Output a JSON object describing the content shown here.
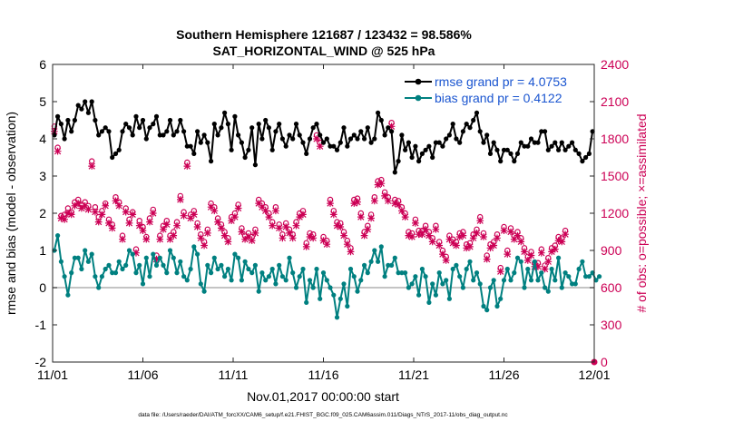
{
  "chart_data": {
    "type": "line",
    "title_line1": "Southern Hemisphere 121687 / 123432 = 98.586%",
    "title_line2": "SAT_HORIZONTAL_WIND @ 525 hPa",
    "xlabel": "Nov.01,2017 00:00:00 start",
    "ylabel_left": "rmse and bias (model - observation)",
    "ylabel_right": "# of obs: o=possible; ×=assimilated",
    "footer": "data file: /Users/raeder/DAI/ATM_forcXX/CAM6_setup/f.e21.FHIST_BGC.f09_025.CAM6assim.011/Diags_NTrS_2017-11/obs_diag_output.nc",
    "x_ticks": [
      "11/01",
      "11/06",
      "11/11",
      "11/16",
      "11/21",
      "11/26",
      "12/01"
    ],
    "y_left_ticks": [
      "-2",
      "-1",
      "0",
      "1",
      "2",
      "3",
      "4",
      "5",
      "6"
    ],
    "y_right_ticks": [
      "0",
      "300",
      "600",
      "900",
      "1200",
      "1500",
      "1800",
      "2100",
      "2400"
    ],
    "ylim_left": [
      -2,
      6
    ],
    "ylim_right": [
      0,
      2400
    ],
    "xlim_days": [
      0,
      30
    ],
    "legend": {
      "rmse_label": "rmse grand pr = 4.0753",
      "bias_label": "bias grand pr = 0.4122",
      "position": "top-right"
    },
    "colors": {
      "rmse": "#000000",
      "bias": "#008080",
      "obs": "#cc0055",
      "zero_line": "#b0b0b0",
      "legend_text": "#1a55d0"
    },
    "rmse": [
      4.1,
      4.6,
      4.4,
      4.0,
      4.5,
      4.2,
      4.5,
      4.9,
      4.8,
      5.0,
      4.7,
      5.0,
      4.5,
      4.1,
      4.2,
      4.3,
      4.2,
      3.5,
      3.6,
      3.7,
      4.2,
      4.4,
      4.3,
      4.1,
      4.6,
      4.3,
      4.5,
      4.0,
      4.3,
      4.4,
      4.6,
      4.1,
      4.1,
      4.2,
      4.5,
      4.1,
      4.2,
      4.5,
      4.2,
      3.8,
      3.8,
      3.6,
      4.2,
      3.9,
      4.1,
      3.9,
      3.4,
      4.4,
      4.1,
      4.3,
      4.7,
      4.4,
      3.7,
      4.6,
      4.1,
      3.9,
      3.5,
      3.7,
      4.3,
      3.3,
      4.4,
      4.0,
      4.5,
      4.3,
      3.7,
      4.2,
      4.4,
      4.0,
      3.8,
      4.1,
      4.0,
      4.4,
      4.1,
      3.9,
      3.6,
      4.0,
      4.3,
      4.4,
      4.1,
      3.9,
      4.0,
      3.8,
      3.8,
      3.7,
      3.9,
      4.3,
      3.8,
      4.0,
      4.1,
      4.0,
      4.2,
      4.0,
      4.3,
      3.9,
      4.0,
      4.7,
      4.5,
      4.1,
      4.3,
      4.2,
      3.1,
      3.4,
      4.1,
      3.7,
      3.9,
      3.5,
      3.8,
      3.4,
      3.6,
      3.7,
      3.8,
      3.5,
      3.9,
      3.9,
      3.8,
      4.0,
      4.1,
      4.4,
      4.0,
      3.9,
      4.2,
      4.4,
      4.3,
      4.5,
      4.7,
      4.2,
      3.9,
      4.1,
      3.6,
      3.9,
      3.7,
      3.4,
      3.7,
      3.7,
      3.6,
      3.4,
      3.6,
      3.9,
      3.8,
      3.8,
      4.0,
      3.9,
      3.9,
      4.2,
      4.2,
      3.7,
      3.8,
      3.9,
      3.7,
      3.9,
      3.7,
      3.8,
      3.9,
      3.7,
      3.6,
      3.4,
      3.5,
      3.6,
      4.2
    ],
    "bias": [
      1.0,
      1.4,
      0.7,
      0.3,
      -0.2,
      0.4,
      0.8,
      0.8,
      0.5,
      1.0,
      0.7,
      0.9,
      0.3,
      0.0,
      0.3,
      0.5,
      0.6,
      0.4,
      0.4,
      0.7,
      0.5,
      0.6,
      1.0,
      0.9,
      0.4,
      0.6,
      0.1,
      0.8,
      0.3,
      0.9,
      0.6,
      0.8,
      0.6,
      0.4,
      1.0,
      0.8,
      0.4,
      0.7,
      0.3,
      0.2,
      0.5,
      1.1,
      0.9,
      0.1,
      -0.1,
      0.6,
      0.4,
      0.8,
      0.5,
      0.6,
      0.3,
      0.5,
      0.2,
      0.9,
      0.8,
      0.2,
      0.7,
      0.5,
      0.4,
      0.6,
      -0.1,
      0.4,
      0.2,
      0.3,
      0.5,
      0.1,
      0.6,
      0.3,
      0.2,
      0.8,
      0.4,
      0.0,
      0.3,
      0.5,
      -0.4,
      0.2,
      0.0,
      0.5,
      -0.3,
      0.4,
      0.2,
      0.0,
      -0.2,
      -0.8,
      -0.3,
      0.1,
      -0.5,
      0.5,
      0.3,
      -0.1,
      0.2,
      0.6,
      0.4,
      0.7,
      1.0,
      0.7,
      1.1,
      0.3,
      0.6,
      0.6,
      0.8,
      0.4,
      0.4,
      0.4,
      0.0,
      0.1,
      0.3,
      -0.2,
      0.5,
      0.3,
      -0.4,
      0.1,
      -0.2,
      0.4,
      0.1,
      0.2,
      -0.3,
      0.5,
      0.6,
      0.3,
      0.0,
      0.5,
      0.7,
      0.2,
      0.4,
      0.1,
      -0.5,
      -0.6,
      0.0,
      0.2,
      -0.5,
      -0.3,
      0.2,
      0.5,
      0.2,
      0.4,
      0.8,
      0.7,
      0.0,
      0.5,
      0.2,
      0.7,
      0.2,
      0.4,
      0.0,
      -0.1,
      0.5,
      0.2,
      0.8,
      0.0,
      0.4,
      0.3,
      0.1,
      0.1,
      0.5,
      0.7,
      0.3,
      0.3,
      0.4,
      0.2,
      0.3
    ],
    "obs_possible": [
      1900,
      1730,
      1180,
      1190,
      1240,
      1210,
      1290,
      1310,
      1270,
      1290,
      1260,
      1620,
      1250,
      1170,
      1220,
      1280,
      1150,
      1110,
      1330,
      1290,
      1020,
      1240,
      1150,
      1210,
      910,
      1140,
      1090,
      1010,
      1160,
      1230,
      860,
      1020,
      1100,
      1140,
      1020,
      1050,
      1130,
      1340,
      1210,
      1610,
      1190,
      1220,
      1120,
      1030,
      970,
      1070,
      1280,
      1250,
      1160,
      1110,
      1050,
      1000,
      1170,
      1200,
      1270,
      1080,
      1020,
      1040,
      1010,
      1070,
      1310,
      1280,
      1250,
      1200,
      1130,
      1250,
      1110,
      1030,
      1120,
      1070,
      1030,
      1130,
      1200,
      1220,
      960,
      1040,
      1030,
      1830,
      1770,
      1010,
      980,
      1310,
      1220,
      1130,
      1120,
      1050,
      980,
      920,
      1310,
      1320,
      1200,
      1050,
      1100,
      1190,
      1330,
      1460,
      1470,
      1370,
      1330,
      1930,
      1310,
      1300,
      1250,
      1200,
      1050,
      1040,
      1150,
      1060,
      1060,
      1100,
      1050,
      1000,
      1100,
      970,
      900,
      850,
      1020,
      990,
      970,
      1040,
      1050,
      950,
      960,
      1030,
      1070,
      1170,
      1040,
      860,
      950,
      970,
      1030,
      760,
      1090,
      900,
      1080,
      1020,
      1050,
      1000,
      920,
      850,
      890,
      800,
      800,
      910,
      780,
      840,
      920,
      940,
      1010,
      1000,
      1060
    ],
    "obs_assimilated": [
      1860,
      1700,
      1160,
      1150,
      1200,
      1190,
      1260,
      1280,
      1240,
      1260,
      1230,
      1580,
      1210,
      1130,
      1190,
      1260,
      1120,
      1080,
      1300,
      1260,
      990,
      1210,
      1120,
      1190,
      880,
      1100,
      1060,
      990,
      1130,
      1200,
      830,
      990,
      1070,
      1110,
      990,
      1020,
      1100,
      1310,
      1180,
      1580,
      1160,
      1190,
      1090,
      1000,
      940,
      1040,
      1250,
      1220,
      1130,
      1080,
      1020,
      970,
      1140,
      1170,
      1240,
      1050,
      990,
      1010,
      980,
      1040,
      1280,
      1250,
      1220,
      1170,
      1100,
      1220,
      1080,
      1000,
      1090,
      1040,
      1000,
      1100,
      1170,
      1190,
      930,
      1010,
      1000,
      1800,
      1740,
      980,
      950,
      1280,
      1190,
      1100,
      1090,
      1020,
      950,
      890,
      1280,
      1290,
      1170,
      1020,
      1070,
      1160,
      1300,
      1430,
      1440,
      1340,
      1300,
      1900,
      1280,
      1270,
      1220,
      1170,
      1020,
      1010,
      1120,
      1030,
      1030,
      1070,
      1020,
      970,
      1070,
      940,
      870,
      820,
      990,
      960,
      940,
      1010,
      1020,
      920,
      930,
      1000,
      1040,
      1140,
      1010,
      830,
      920,
      940,
      1000,
      730,
      1060,
      870,
      1050,
      990,
      1020,
      970,
      890,
      820,
      860,
      770,
      770,
      880,
      750,
      810,
      890,
      910,
      980,
      970,
      1030
    ]
  }
}
